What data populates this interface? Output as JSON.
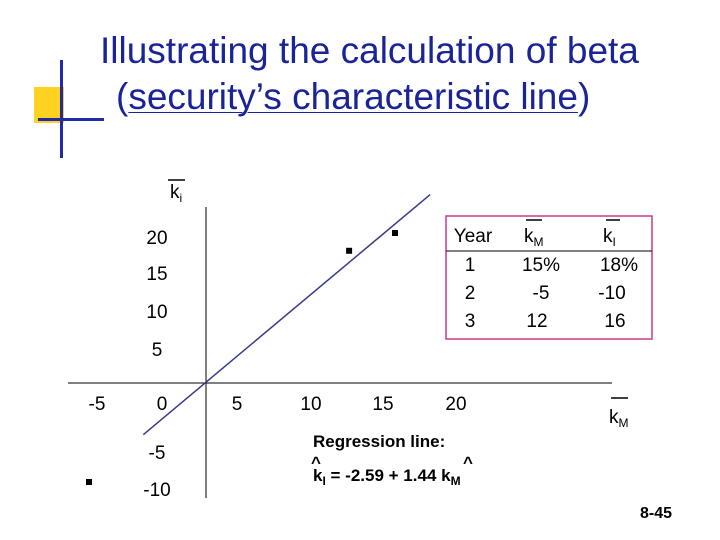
{
  "title": {
    "line1": "Illustrating the calculation of beta",
    "line2_open": "(",
    "line2_underlined": "security’s characteristic line",
    "line2_close": ")"
  },
  "page_number": "8-45",
  "colors": {
    "title": "#1a2398",
    "accent_block": "#ffd21f",
    "accent_lines": "#1f2ba8",
    "regression_line": "#3a3a8c",
    "table_border": "#cc3a8a"
  },
  "chart_data": {
    "type": "scatter",
    "ylabel_main": "k",
    "ylabel_sub": "i",
    "xlabel_main": "k",
    "xlabel_sub": "M",
    "x_ticks": [
      "-5",
      "0",
      "5",
      "10",
      "15",
      "20"
    ],
    "y_ticks": [
      "20",
      "15",
      "10",
      "5",
      "-5",
      "-10"
    ],
    "points": [
      {
        "x": 15,
        "y": 18
      },
      {
        "x": -5,
        "y": -10
      },
      {
        "x": 12,
        "y": 16
      }
    ],
    "regression": {
      "intercept": -2.59,
      "slope": 1.44,
      "label": "Regression line:"
    },
    "regression_equation": {
      "lhs_main": "k",
      "lhs_sub": "I",
      "rhs_text": " = -2.59 + 1.44 ",
      "rhs_main": "k",
      "rhs_sub": "M",
      "hat_symbol": "^"
    },
    "table": {
      "columns": [
        {
          "main": "Year",
          "sub": ""
        },
        {
          "main": "k",
          "sub": "M"
        },
        {
          "main": "k",
          "sub": "I"
        }
      ],
      "rows": [
        [
          "1",
          "15%",
          "18%"
        ],
        [
          "2",
          "-5",
          "-10"
        ],
        [
          "3",
          "12",
          "16"
        ]
      ]
    }
  }
}
